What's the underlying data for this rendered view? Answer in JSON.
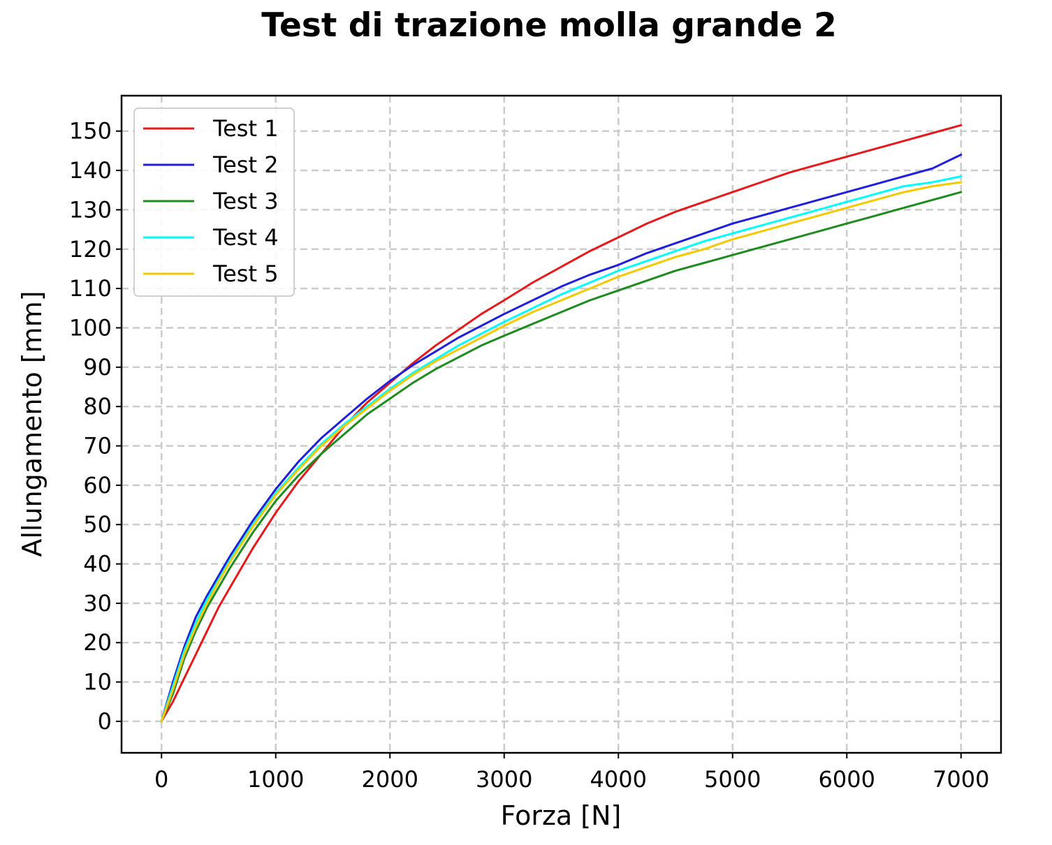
{
  "chart_data": {
    "type": "line",
    "title": "Test di trazione molla grande 2",
    "xlabel": "Forza [N]",
    "ylabel": "Allungamento [mm]",
    "xlim": [
      -350,
      7350
    ],
    "ylim": [
      -8,
      159
    ],
    "xticks": [
      0,
      1000,
      2000,
      3000,
      4000,
      5000,
      6000,
      7000
    ],
    "yticks": [
      0,
      10,
      20,
      30,
      40,
      50,
      60,
      70,
      80,
      90,
      100,
      110,
      120,
      130,
      140,
      150
    ],
    "grid": true,
    "legend_position": "upper left",
    "x": [
      0,
      100,
      200,
      300,
      400,
      500,
      600,
      800,
      1000,
      1200,
      1400,
      1600,
      1800,
      2000,
      2200,
      2400,
      2600,
      2800,
      3000,
      3250,
      3500,
      3750,
      4000,
      4250,
      4500,
      4750,
      5000,
      5250,
      5500,
      5750,
      6000,
      6250,
      6500,
      6750,
      7000
    ],
    "series": [
      {
        "name": "Test 1",
        "color": "#e41a1c",
        "values": [
          0,
          5,
          11,
          17,
          23,
          29,
          34,
          44,
          53,
          61,
          68,
          75,
          81,
          86,
          91,
          95.5,
          99.5,
          103.5,
          107,
          111.5,
          115.5,
          119.5,
          123,
          126.5,
          129.5,
          132,
          134.5,
          137,
          139.5,
          141.5,
          143.5,
          145.5,
          147.5,
          149.5,
          151.5
        ]
      },
      {
        "name": "Test 2",
        "color": "#1f1fdd",
        "values": [
          0,
          10,
          19,
          26.5,
          32,
          37,
          42,
          51,
          59,
          66,
          72,
          77,
          82,
          86.5,
          90.5,
          94,
          97.5,
          100.5,
          103.5,
          107,
          110.5,
          113.5,
          116,
          119,
          121.5,
          124,
          126.5,
          128.5,
          130.5,
          132.5,
          134.5,
          136.5,
          138.5,
          140.5,
          144
        ]
      },
      {
        "name": "Test 3",
        "color": "#1e8b1e",
        "values": [
          0,
          7,
          16,
          23,
          29,
          34,
          39,
          48,
          56,
          62.5,
          68,
          73,
          78,
          82,
          86,
          89.5,
          92.5,
          95.5,
          98,
          101,
          104,
          107,
          109.5,
          112,
          114.5,
          116.5,
          118.5,
          120.5,
          122.5,
          124.5,
          126.5,
          128.5,
          130.5,
          132.5,
          134.5
        ]
      },
      {
        "name": "Test 4",
        "color": "#00ffff",
        "values": [
          0,
          9,
          18,
          25,
          31,
          36,
          41,
          50,
          58,
          64.5,
          70.5,
          75.5,
          80,
          84.5,
          88.5,
          92,
          95.5,
          98.5,
          101.5,
          105,
          108.5,
          111.5,
          114.5,
          117,
          119.5,
          122,
          124,
          126,
          128,
          130,
          132,
          134,
          136,
          137,
          138.5
        ]
      },
      {
        "name": "Test 5",
        "color": "#f5c800",
        "values": [
          0,
          8,
          17,
          24,
          30,
          35.5,
          40.5,
          49.5,
          57.5,
          64,
          70,
          75,
          79.5,
          84,
          88,
          91.5,
          94.5,
          97.5,
          100.5,
          104,
          107,
          110,
          113,
          115.5,
          118,
          120,
          122.5,
          124.5,
          126.5,
          128.5,
          130.5,
          132.5,
          134.5,
          136,
          137
        ]
      }
    ]
  }
}
